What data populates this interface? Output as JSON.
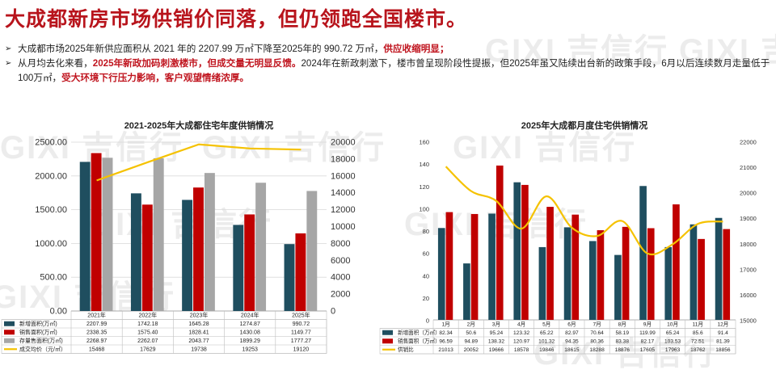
{
  "headline": "大成都新房市场供销价同落，但仍领跑全国楼市。",
  "watermark": "GIXI 吉信行",
  "bullets": [
    {
      "marker": "➢",
      "parts": [
        {
          "text": "大成都市场2025年新供应面积从 2021 年的 2207.99 万㎡下降至2025年的 990.72 万㎡，",
          "emphasis": false
        },
        {
          "text": "供应收缩明显；",
          "emphasis": true
        }
      ]
    },
    {
      "marker": "➢",
      "parts": [
        {
          "text": "从月均去化来看，",
          "emphasis": false
        },
        {
          "text": "2025年新政加码刺激楼市，但成交量无明显反馈。",
          "emphasis": true
        },
        {
          "text": "2024年在新政刺激下，楼市曾呈现阶段性提振，但2025年虽又陆续出台新的政策手段，6月以后连续数月走量低于100万㎡，",
          "emphasis": false
        },
        {
          "text": "受大环境下行压力影响，客户观望情绪浓厚。",
          "emphasis": true
        }
      ]
    }
  ],
  "colors": {
    "title_red": "#b8141c",
    "new_supply": "#1f4e5f",
    "sales": "#c00000",
    "stock": "#a6a6a6",
    "line": "#f5c200"
  },
  "chart_data": [
    {
      "type": "bar",
      "title": "2021-2025年大成都住宅年度供销情况",
      "categories": [
        "2021年",
        "2022年",
        "2023年",
        "2024年",
        "2025年"
      ],
      "series": [
        {
          "name": "新增面积(万㎡)",
          "values": [
            2207.99,
            1742.18,
            1645.28,
            1274.87,
            990.72
          ],
          "value_labels": [
            "2207.99",
            "1742.18",
            "1645.28",
            "1274.87",
            "990.72"
          ],
          "color": "#1f4e5f",
          "legend_marker": "bar",
          "axis": "left"
        },
        {
          "name": "销售面积(万㎡)",
          "values": [
            2338.35,
            1575.4,
            1828.41,
            1430.08,
            1149.77
          ],
          "value_labels": [
            "2338.35",
            "1575.40",
            "1828.41",
            "1430.08",
            "1149.77"
          ],
          "color": "#c00000",
          "legend_marker": "bar",
          "axis": "left"
        },
        {
          "name": "存量售面积(万㎡)",
          "values": [
            2268.97,
            2262.07,
            2043.77,
            1899.29,
            1777.27
          ],
          "value_labels": [
            "2268.97",
            "2262.07",
            "2043.77",
            "1899.29",
            "1777.27"
          ],
          "color": "#a6a6a6",
          "legend_marker": "bar",
          "axis": "left"
        },
        {
          "name": "成交均价（元/㎡）",
          "values": [
            15468,
            17629,
            19738,
            19253,
            19120
          ],
          "value_labels": [
            "15468",
            "17629",
            "19738",
            "19253",
            "19120"
          ],
          "color": "#f5c200",
          "legend_marker": "line",
          "axis": "right",
          "render": "line"
        }
      ],
      "ylim": [
        0,
        2500
      ],
      "yticks": [
        "2500.00",
        "2000.00",
        "1500.00",
        "1000.00",
        "500.00",
        "0.00"
      ],
      "y2lim": [
        0,
        20000
      ],
      "y2ticks": [
        "20000",
        "18000",
        "16000",
        "14000",
        "12000",
        "10000",
        "8000",
        "6000",
        "4000",
        "2000",
        "0"
      ],
      "grid": true,
      "legend": "data-table"
    },
    {
      "type": "bar",
      "title": "2025年大成都月度住宅供销情况",
      "categories": [
        "1月",
        "2月",
        "3月",
        "4月",
        "5月",
        "6月",
        "7月",
        "8月",
        "9月",
        "10月",
        "11月",
        "12月"
      ],
      "series": [
        {
          "name": "新增面积（万㎡）",
          "values": [
            82.34,
            50.6,
            95.24,
            123.32,
            65.22,
            82.97,
            70.64,
            58.19,
            119.99,
            65.24,
            85.6,
            91.4
          ],
          "value_labels": [
            "82.34",
            "50.6",
            "95.24",
            "123.32",
            "65.22",
            "82.97",
            "70.64",
            "58.19",
            "119.99",
            "65.24",
            "85.6",
            "91.4"
          ],
          "color": "#1f4e5f",
          "legend_marker": "bar",
          "axis": "left"
        },
        {
          "name": "销售面积（万㎡）",
          "values": [
            96.59,
            94.89,
            138.32,
            120.97,
            101.32,
            94.35,
            80.36,
            83.38,
            82.17,
            103.53,
            72.51,
            81.39
          ],
          "value_labels": [
            "96.59",
            "94.89",
            "138.32",
            "120.97",
            "101.32",
            "94.35",
            "80.36",
            "83.38",
            "82.17",
            "103.53",
            "72.51",
            "81.39"
          ],
          "color": "#c00000",
          "legend_marker": "bar",
          "axis": "left"
        },
        {
          "name": "供销比",
          "values": [
            21013,
            20052,
            19666,
            18578,
            19846,
            18615,
            18288,
            18876,
            17605,
            17963,
            18762,
            18856
          ],
          "value_labels": [
            "21013",
            "20052",
            "19666",
            "18578",
            "19846",
            "18615",
            "18288",
            "18876",
            "17605",
            "17963",
            "18762",
            "18856"
          ],
          "color": "#f5c200",
          "legend_marker": "line",
          "axis": "right",
          "render": "smooth-line"
        }
      ],
      "ylim": [
        0,
        160
      ],
      "yticks": [
        "160",
        "140",
        "120",
        "100",
        "80",
        "60",
        "40",
        "20",
        "0"
      ],
      "y2lim": [
        15000,
        22000
      ],
      "y2ticks": [
        "22000",
        "21000",
        "20000",
        "19000",
        "18000",
        "17000",
        "16000",
        "15000"
      ],
      "grid": false,
      "legend": "data-table"
    }
  ]
}
